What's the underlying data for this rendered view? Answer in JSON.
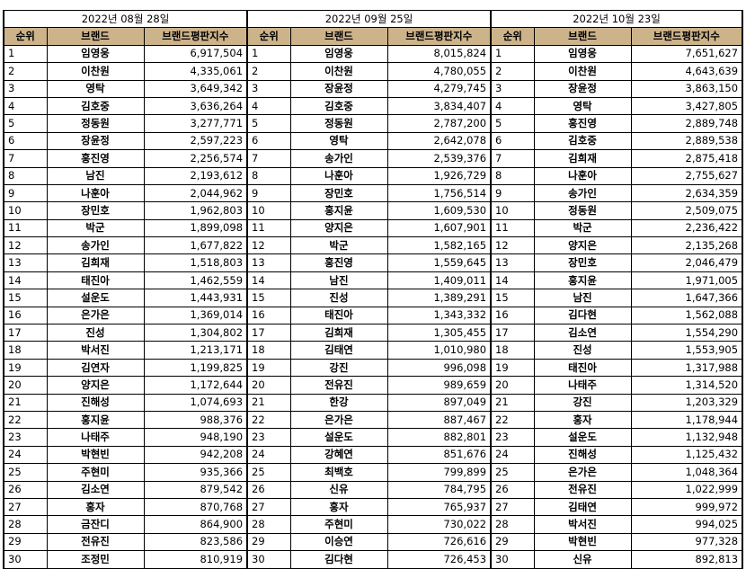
{
  "headers": {
    "rank": "순위",
    "brand": "브랜드",
    "index": "브랜드평판지수"
  },
  "periods": [
    {
      "date": "2022년 08월 28일",
      "rows": [
        [
          "1",
          "임영웅",
          "6,917,504"
        ],
        [
          "2",
          "이찬원",
          "4,335,061"
        ],
        [
          "3",
          "영탁",
          "3,649,342"
        ],
        [
          "4",
          "김호중",
          "3,636,264"
        ],
        [
          "5",
          "정동원",
          "3,277,771"
        ],
        [
          "6",
          "장윤정",
          "2,597,223"
        ],
        [
          "7",
          "홍진영",
          "2,256,574"
        ],
        [
          "8",
          "남진",
          "2,193,612"
        ],
        [
          "9",
          "나훈아",
          "2,044,962"
        ],
        [
          "10",
          "장민호",
          "1,962,803"
        ],
        [
          "11",
          "박군",
          "1,899,098"
        ],
        [
          "12",
          "송가인",
          "1,677,822"
        ],
        [
          "13",
          "김희재",
          "1,518,803"
        ],
        [
          "14",
          "태진아",
          "1,462,559"
        ],
        [
          "15",
          "설운도",
          "1,443,931"
        ],
        [
          "16",
          "은가은",
          "1,369,014"
        ],
        [
          "17",
          "진성",
          "1,304,802"
        ],
        [
          "18",
          "박서진",
          "1,213,171"
        ],
        [
          "19",
          "김연자",
          "1,199,825"
        ],
        [
          "20",
          "양지은",
          "1,172,644"
        ],
        [
          "21",
          "진해성",
          "1,074,693"
        ],
        [
          "22",
          "홍지윤",
          "988,376"
        ],
        [
          "23",
          "나태주",
          "948,190"
        ],
        [
          "24",
          "박현빈",
          "942,208"
        ],
        [
          "25",
          "주현미",
          "935,366"
        ],
        [
          "26",
          "김소연",
          "879,542"
        ],
        [
          "27",
          "홍자",
          "870,768"
        ],
        [
          "28",
          "금잔디",
          "864,900"
        ],
        [
          "29",
          "전유진",
          "823,586"
        ],
        [
          "30",
          "조정민",
          "810,919"
        ]
      ]
    },
    {
      "date": "2022년 09월 25일",
      "rows": [
        [
          "1",
          "임영웅",
          "8,015,824"
        ],
        [
          "2",
          "이찬원",
          "4,780,055"
        ],
        [
          "3",
          "장윤정",
          "4,279,745"
        ],
        [
          "4",
          "김호중",
          "3,834,407"
        ],
        [
          "5",
          "정동원",
          "2,787,200"
        ],
        [
          "6",
          "영탁",
          "2,642,078"
        ],
        [
          "7",
          "송가인",
          "2,539,376"
        ],
        [
          "8",
          "나훈아",
          "1,926,729"
        ],
        [
          "9",
          "장민호",
          "1,756,514"
        ],
        [
          "10",
          "홍지윤",
          "1,609,530"
        ],
        [
          "11",
          "양지은",
          "1,607,901"
        ],
        [
          "12",
          "박군",
          "1,582,165"
        ],
        [
          "13",
          "홍진영",
          "1,559,645"
        ],
        [
          "14",
          "남진",
          "1,409,011"
        ],
        [
          "15",
          "진성",
          "1,389,291"
        ],
        [
          "16",
          "태진아",
          "1,343,332"
        ],
        [
          "17",
          "김희재",
          "1,305,455"
        ],
        [
          "18",
          "김태연",
          "1,010,980"
        ],
        [
          "19",
          "강진",
          "996,098"
        ],
        [
          "20",
          "전유진",
          "989,659"
        ],
        [
          "21",
          "한강",
          "897,049"
        ],
        [
          "22",
          "은가은",
          "887,467"
        ],
        [
          "23",
          "설운도",
          "882,801"
        ],
        [
          "24",
          "강혜연",
          "851,676"
        ],
        [
          "25",
          "최백호",
          "799,899"
        ],
        [
          "26",
          "신유",
          "784,795"
        ],
        [
          "27",
          "홍자",
          "765,937"
        ],
        [
          "28",
          "주현미",
          "730,022"
        ],
        [
          "29",
          "이승연",
          "726,616"
        ],
        [
          "30",
          "김다현",
          "726,453"
        ]
      ]
    },
    {
      "date": "2022년 10월 23일",
      "rows": [
        [
          "1",
          "임영웅",
          "7,651,627"
        ],
        [
          "2",
          "이찬원",
          "4,643,639"
        ],
        [
          "3",
          "장윤정",
          "3,863,150"
        ],
        [
          "4",
          "영탁",
          "3,427,805"
        ],
        [
          "5",
          "홍진영",
          "2,889,748"
        ],
        [
          "6",
          "김호중",
          "2,889,538"
        ],
        [
          "7",
          "김희재",
          "2,875,418"
        ],
        [
          "8",
          "나훈아",
          "2,755,627"
        ],
        [
          "9",
          "송가인",
          "2,634,359"
        ],
        [
          "10",
          "정동원",
          "2,509,075"
        ],
        [
          "11",
          "박군",
          "2,236,422"
        ],
        [
          "12",
          "양지은",
          "2,135,268"
        ],
        [
          "13",
          "장민호",
          "2,046,479"
        ],
        [
          "14",
          "홍지윤",
          "1,971,005"
        ],
        [
          "15",
          "남진",
          "1,647,366"
        ],
        [
          "16",
          "김다현",
          "1,562,088"
        ],
        [
          "17",
          "김소연",
          "1,554,290"
        ],
        [
          "18",
          "진성",
          "1,553,905"
        ],
        [
          "19",
          "태진아",
          "1,317,988"
        ],
        [
          "20",
          "나태주",
          "1,314,520"
        ],
        [
          "21",
          "강진",
          "1,203,329"
        ],
        [
          "22",
          "홍자",
          "1,178,944"
        ],
        [
          "23",
          "설운도",
          "1,132,948"
        ],
        [
          "24",
          "진해성",
          "1,125,432"
        ],
        [
          "25",
          "은가은",
          "1,048,364"
        ],
        [
          "26",
          "전유진",
          "1,022,999"
        ],
        [
          "27",
          "김태연",
          "999,972"
        ],
        [
          "28",
          "박서진",
          "994,025"
        ],
        [
          "29",
          "박현빈",
          "977,328"
        ],
        [
          "30",
          "신유",
          "892,813"
        ]
      ]
    }
  ]
}
